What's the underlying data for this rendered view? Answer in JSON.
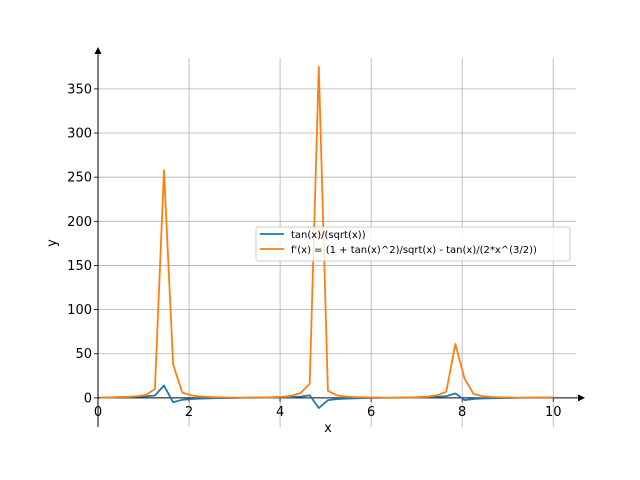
{
  "chart_data": {
    "type": "line",
    "xlabel": "x",
    "ylabel": "y",
    "xlim": [
      0,
      10.5
    ],
    "ylim": [
      -33,
      385
    ],
    "xticks": [
      0,
      2,
      4,
      6,
      8,
      10
    ],
    "yticks": [
      0,
      50,
      100,
      150,
      200,
      250,
      300,
      350
    ],
    "grid": true,
    "legend_position": "center-right",
    "series": [
      {
        "name": "tan(x)/(sqrt(x))",
        "color": "#1f77b4",
        "x": [
          0.05,
          0.25,
          0.45,
          0.65,
          0.85,
          1.05,
          1.25,
          1.45,
          1.65,
          1.85,
          2.05,
          2.25,
          2.45,
          2.65,
          2.85,
          3.05,
          3.25,
          3.45,
          3.65,
          3.85,
          4.05,
          4.25,
          4.45,
          4.65,
          4.85,
          5.05,
          5.25,
          5.45,
          5.65,
          5.85,
          6.05,
          6.25,
          6.45,
          6.65,
          6.85,
          7.05,
          7.25,
          7.45,
          7.65,
          7.85,
          8.05,
          8.25,
          8.45,
          8.65,
          8.85,
          9.05,
          9.25,
          9.45,
          9.65,
          9.85,
          10.0
        ],
        "y": [
          0.2,
          0.5,
          0.7,
          0.9,
          1.2,
          1.7,
          2.7,
          14.0,
          -5.0,
          -2.2,
          -1.3,
          -0.8,
          -0.5,
          -0.3,
          -0.2,
          -0.1,
          0.1,
          0.2,
          0.3,
          0.4,
          0.6,
          0.9,
          1.4,
          3.0,
          -11.5,
          -2.6,
          -1.4,
          -0.8,
          -0.5,
          -0.2,
          -0.1,
          0.0,
          0.1,
          0.2,
          0.4,
          0.5,
          0.8,
          1.2,
          2.0,
          5.0,
          -2.5,
          -1.2,
          -0.7,
          -0.4,
          -0.2,
          -0.1,
          0.0,
          0.1,
          0.1,
          0.2,
          0.2
        ]
      },
      {
        "name": "f'(x) = (1 + tan(x)^2)/sqrt(x) - tan(x)/(2*x^(3/2))",
        "color": "#ff7f0e",
        "x": [
          0.05,
          0.25,
          0.45,
          0.65,
          0.85,
          1.05,
          1.25,
          1.45,
          1.65,
          1.85,
          2.05,
          2.25,
          2.45,
          2.65,
          2.85,
          3.05,
          3.25,
          3.45,
          3.65,
          3.85,
          4.05,
          4.25,
          4.45,
          4.65,
          4.85,
          5.05,
          5.25,
          5.45,
          5.65,
          5.85,
          6.05,
          6.25,
          6.45,
          6.65,
          6.85,
          7.05,
          7.25,
          7.45,
          7.65,
          7.85,
          8.05,
          8.25,
          8.45,
          8.65,
          8.85,
          9.05,
          9.25,
          9.45,
          9.65,
          9.85,
          10.0
        ],
        "y": [
          0.3,
          0.6,
          0.9,
          1.2,
          1.8,
          3.2,
          10.0,
          258.0,
          38.0,
          6.0,
          2.8,
          1.6,
          0.9,
          0.6,
          0.4,
          0.3,
          0.3,
          0.4,
          0.5,
          0.8,
          1.3,
          2.4,
          5.5,
          16.0,
          375.0,
          8.0,
          2.8,
          1.4,
          0.8,
          0.5,
          0.4,
          0.3,
          0.3,
          0.4,
          0.6,
          0.9,
          1.5,
          3.0,
          7.0,
          61.0,
          22.0,
          4.5,
          1.9,
          1.0,
          0.6,
          0.4,
          0.3,
          0.3,
          0.4,
          0.5,
          0.6
        ]
      }
    ]
  }
}
